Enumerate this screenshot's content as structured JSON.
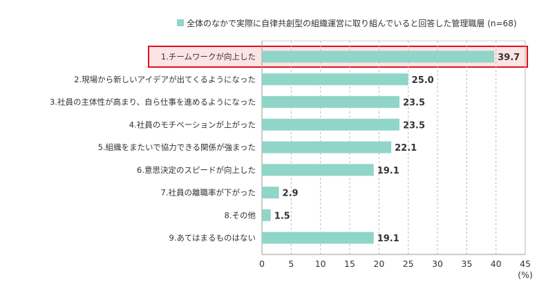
{
  "chart_data": {
    "type": "bar",
    "orientation": "horizontal",
    "legend": "全体のなかで実際に自律共創型の組織運営に取り組んでいると回答した管理職層 (n=68)",
    "legend_placement": "top-right",
    "categories": [
      "1.チームワークが向上した",
      "2.現場から新しいアイデアが出てくるようになった",
      "3.社員の主体性が高まり、自ら仕事を進めるようになった",
      "4.社員のモチベーションが上がった",
      "5.組織をまたいで協力できる関係が強まった",
      "6.意思決定のスピードが向上した",
      "7.社員の離職率が下がった",
      "8.その他",
      "9.あてはまるものはない"
    ],
    "values": [
      39.7,
      25.0,
      23.5,
      23.5,
      22.1,
      19.1,
      2.9,
      1.5,
      19.1
    ],
    "value_labels": [
      "39.7",
      "25.0",
      "23.5",
      "23.5",
      "22.1",
      "19.1",
      "2.9",
      "1.5",
      "19.1"
    ],
    "highlighted_index": 0,
    "xlim": [
      0,
      45
    ],
    "xticks": [
      "0",
      "5",
      "10",
      "15",
      "20",
      "25",
      "30",
      "35",
      "40",
      "45"
    ],
    "xunit": "(%)",
    "grid": true,
    "colors": {
      "bar": "#8fd5c8",
      "highlight_border": "#e0101a",
      "highlight_fill": "#fde4e4",
      "grid": "#b8b8b8",
      "axis": "#999999"
    }
  }
}
